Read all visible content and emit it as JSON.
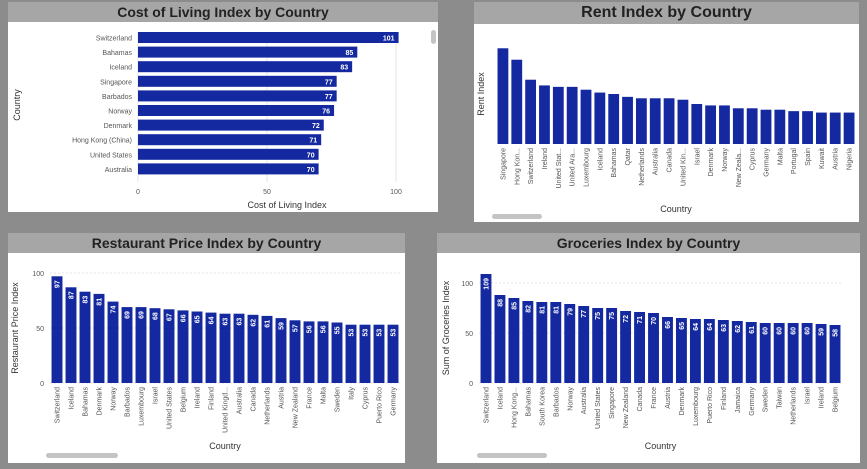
{
  "colors": {
    "bar": "#1428a0",
    "background": "#8c8c8c",
    "title_bar": "#a6a6a6"
  },
  "chart_data": [
    {
      "id": "cost",
      "type": "bar",
      "orientation": "horizontal",
      "title": "Cost of Living Index by Country",
      "xlabel": "Cost of Living Index",
      "ylabel": "Country",
      "xlim": [
        0,
        110
      ],
      "ticks": [
        0,
        50,
        100
      ],
      "categories": [
        "Switzerland",
        "Bahamas",
        "Iceland",
        "Singapore",
        "Barbados",
        "Norway",
        "Denmark",
        "Hong Kong (China)",
        "United States",
        "Australia"
      ],
      "values": [
        101,
        85,
        83,
        77,
        77,
        76,
        72,
        71,
        70,
        70
      ]
    },
    {
      "id": "rent",
      "type": "bar",
      "orientation": "vertical",
      "title": "Rent Index by Country",
      "xlabel": "Country",
      "ylabel": "Rent Index",
      "ylim": [
        0,
        70
      ],
      "ticks": [],
      "show_values": false,
      "categories": [
        "Singapore",
        "Hong Kon...",
        "Switzerland",
        "Ireland",
        "United Stat...",
        "United Ara...",
        "Luxembourg",
        "Iceland",
        "Bahamas",
        "Qatar",
        "Netherlands",
        "Australia",
        "Canada",
        "United Kin...",
        "Israel",
        "Denmark",
        "Norway",
        "New Zeala...",
        "Cyprus",
        "Germany",
        "Malta",
        "Portugal",
        "Spain",
        "Kuwait",
        "Austria",
        "Nigeria"
      ],
      "values": [
        67,
        59,
        45,
        41,
        40,
        40,
        38,
        36,
        35,
        33,
        32,
        32,
        32,
        31,
        28,
        27,
        27,
        25,
        25,
        24,
        24,
        23,
        23,
        22,
        22,
        22
      ]
    },
    {
      "id": "restaurant",
      "type": "bar",
      "orientation": "vertical",
      "title": "Restaurant Price Index by Country",
      "xlabel": "Country",
      "ylabel": "Restaurant Price Index",
      "ylim": [
        0,
        100
      ],
      "ticks": [
        0,
        50,
        100
      ],
      "show_values": true,
      "categories": [
        "Switzerland",
        "Iceland",
        "Bahamas",
        "Denmark",
        "Norway",
        "Barbados",
        "Luxembourg",
        "Israel",
        "United States",
        "Belgium",
        "Ireland",
        "Finland",
        "United Kingd...",
        "Australia",
        "Canada",
        "Netherlands",
        "Austria",
        "New Zealand",
        "France",
        "Malta",
        "Sweden",
        "Italy",
        "Cyprus",
        "Puerto Rico",
        "Germany"
      ],
      "values": [
        97,
        87,
        83,
        81,
        74,
        69,
        69,
        68,
        67,
        66,
        65,
        64,
        63,
        63,
        62,
        61,
        59,
        57,
        56,
        56,
        55,
        53,
        53,
        53,
        53
      ]
    },
    {
      "id": "groceries",
      "type": "bar",
      "orientation": "vertical",
      "title": "Groceries Index by Country",
      "xlabel": "Country",
      "ylabel": "Sum of Groceries Index",
      "ylim": [
        0,
        110
      ],
      "ticks": [
        0,
        50,
        100
      ],
      "show_values": true,
      "categories": [
        "Switzerland",
        "Iceland",
        "Hong Kong...",
        "Bahamas",
        "South Korea",
        "Barbados",
        "Norway",
        "Australia",
        "United States",
        "Singapore",
        "New Zealand",
        "Canada",
        "France",
        "Austria",
        "Denmark",
        "Luxembourg",
        "Puerto Rico",
        "Finland",
        "Jamaica",
        "Germany",
        "Sweden",
        "Taiwan",
        "Netherlands",
        "Israel",
        "Ireland",
        "Belgium"
      ],
      "values": [
        109,
        88,
        85,
        82,
        81,
        81,
        79,
        77,
        75,
        75,
        72,
        71,
        70,
        66,
        65,
        64,
        64,
        63,
        62,
        61,
        60,
        60,
        60,
        60,
        59,
        58
      ]
    }
  ]
}
